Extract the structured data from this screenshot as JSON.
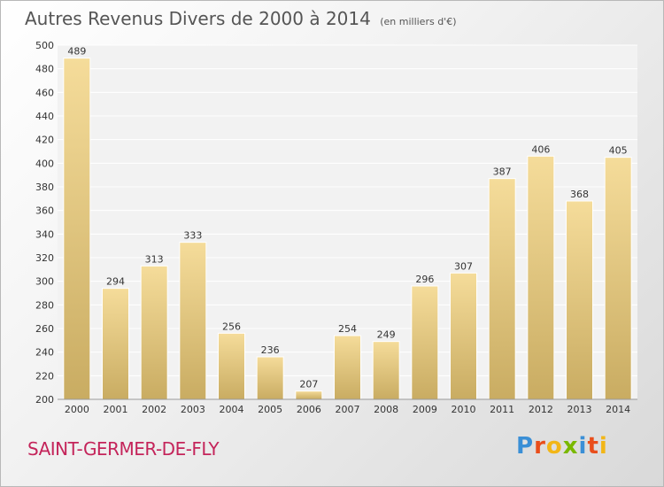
{
  "chart_data": {
    "type": "bar",
    "title": "Autres Revenus Divers de 2000 à 2014",
    "subtitle": "(en milliers d'€)",
    "categories": [
      "2000",
      "2001",
      "2002",
      "2003",
      "2004",
      "2005",
      "2006",
      "2007",
      "2008",
      "2009",
      "2010",
      "2011",
      "2012",
      "2013",
      "2014"
    ],
    "values": [
      489,
      294,
      313,
      333,
      256,
      236,
      207,
      254,
      249,
      296,
      307,
      387,
      406,
      368,
      405
    ],
    "ylim": [
      200,
      500
    ],
    "yticks": [
      200,
      220,
      240,
      260,
      280,
      300,
      320,
      340,
      360,
      380,
      400,
      420,
      440,
      460,
      480,
      500
    ],
    "grid": true,
    "bar_colors": [
      "#f5dc9a",
      "#c9ac62"
    ]
  },
  "footer": {
    "place": "SAINT-GERMER-DE-FLY",
    "brand": "Proxiti"
  },
  "colors": {
    "place": "#c4245a",
    "plot_bg": "#f2f2f2",
    "grid": "#ffffff",
    "axis_text": "#333333",
    "brand": [
      "#3a8fd6",
      "#e94e1b",
      "#f2b617",
      "#7ab800"
    ]
  }
}
